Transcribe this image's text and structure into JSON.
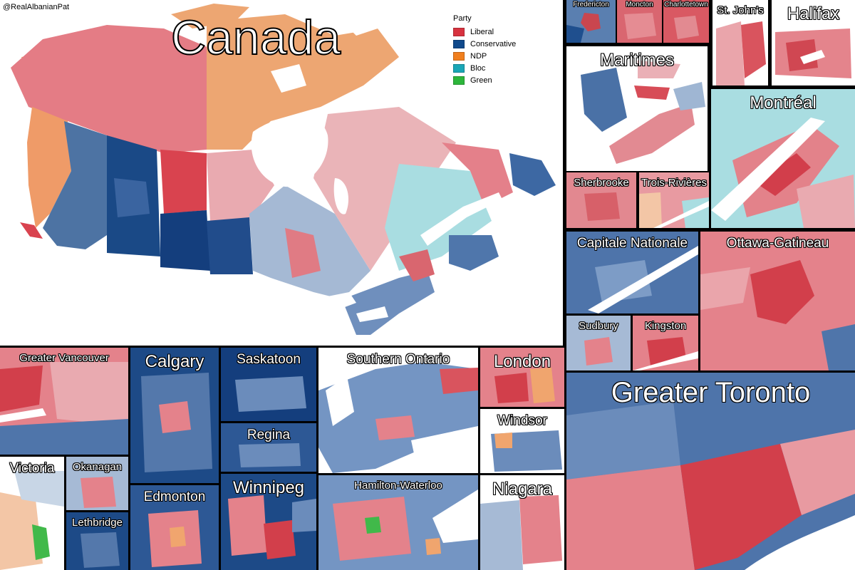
{
  "colors": {
    "liberal": "#d23c4a",
    "liberal_mid": "#e07e86",
    "liberal_light": "#ebb3b8",
    "conservative": "#0f3f7c",
    "conservative_mid": "#5578a8",
    "conservative_light": "#a9bdd6",
    "ndp": "#f0a56e",
    "bloc": "#aadde0",
    "bloc_strong": "#3aa9b8",
    "green": "#41b94a",
    "water": "#ffffff"
  },
  "credit": "@RealAlbanianPat",
  "legend": {
    "title": "Party",
    "items": [
      {
        "label": "Liberal",
        "color": "#d7323f"
      },
      {
        "label": "Conservative",
        "color": "#104a8c"
      },
      {
        "label": "NDP",
        "color": "#f07f1e"
      },
      {
        "label": "Bloc",
        "color": "#1aa6b6"
      },
      {
        "label": "Green",
        "color": "#2db63b"
      }
    ]
  },
  "titles": {
    "canada": "Canada",
    "fredericton": "Fredericton",
    "moncton": "Moncton",
    "charlottetown": "Charlottetown",
    "st_johns": "St. John's",
    "halifax": "Halifax",
    "maritimes": "Maritimes",
    "montreal": "Montréal",
    "sherbrooke": "Sherbrooke",
    "trois_rivieres": "Trois-Rivières",
    "capitale_nationale": "Capitale Nationale",
    "ottawa_gatineau": "Ottawa-Gatineau",
    "sudbury": "Sudbury",
    "kingston": "Kingston",
    "greater_vancouver": "Greater Vancouver",
    "calgary": "Calgary",
    "saskatoon": "Saskatoon",
    "southern_ontario": "Southern Ontario",
    "london": "London",
    "regina": "Regina",
    "windsor": "Windsor",
    "victoria": "Victoria",
    "okanagan": "Okanagan",
    "edmonton": "Edmonton",
    "winnipeg": "Winnipeg",
    "hamilton_waterloo": "Hamilton-Waterloo",
    "niagara": "Niagara",
    "greater_toronto": "Greater Toronto",
    "lethbridge": "Lethbridge"
  }
}
